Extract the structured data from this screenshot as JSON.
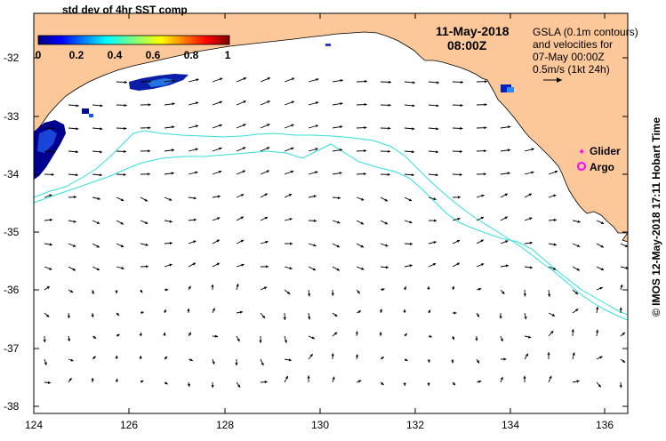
{
  "colorbar": {
    "title": "std dev of 4hr SST comp",
    "ticks": [
      "0",
      "0.2",
      "0.4",
      "0.6",
      "0.8",
      "1"
    ],
    "colors": [
      "#00007f",
      "#0000ff",
      "#007fff",
      "#00ffff",
      "#7fff7f",
      "#ffff00",
      "#ff7f00",
      "#ff0000",
      "#7f0000"
    ]
  },
  "header": {
    "date": "11-May-2018",
    "time": "08:00Z"
  },
  "gsla_note": {
    "line1": "GSLA (0.1m contours)",
    "line2": "and velocities for",
    "line3": "07-May 00:00Z",
    "line4": "0.5m/s (1kt 24h)"
  },
  "legend": {
    "glider": "Glider",
    "argo": "Argo",
    "glider_color": "#ff00ff",
    "argo_color": "#ff00ff"
  },
  "credit": "© IMOS 12-May-2018 17:11 Hobart Time",
  "axes": {
    "lon_labels": [
      "124",
      "126",
      "128",
      "130",
      "132",
      "134",
      "136"
    ],
    "lat_labels": [
      "-32",
      "-33",
      "-34",
      "-35",
      "-36",
      "-37",
      "-38"
    ]
  },
  "colors": {
    "land": "#fcc899",
    "contour": "#33dddd"
  }
}
